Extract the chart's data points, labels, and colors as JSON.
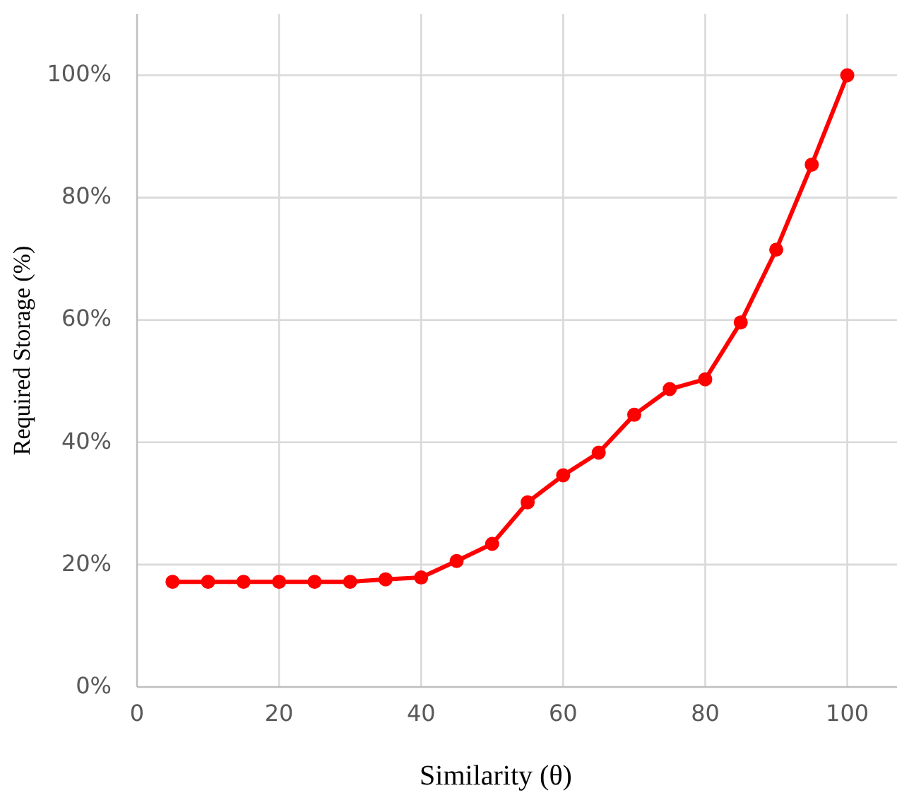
{
  "chart_data": {
    "type": "line",
    "xlabel": "Similarity (θ)",
    "ylabel": "Required Storage (%)",
    "x": [
      5,
      10,
      15,
      20,
      25,
      30,
      35,
      40,
      45,
      50,
      55,
      60,
      65,
      70,
      75,
      80,
      85,
      90,
      95,
      100
    ],
    "series": [
      {
        "color": "#ff0000",
        "values": [
          17.2,
          17.2,
          17.2,
          17.2,
          17.2,
          17.2,
          17.6,
          17.9,
          20.6,
          23.4,
          30.2,
          34.6,
          38.3,
          44.5,
          48.7,
          50.3,
          59.6,
          71.5,
          85.4,
          100
        ]
      }
    ],
    "xlim": [
      0,
      107
    ],
    "xticks": [
      0,
      20,
      40,
      60,
      80,
      100
    ],
    "ylim": [
      0,
      110
    ],
    "yticks": [
      {
        "value": 0,
        "label": "0%"
      },
      {
        "value": 20,
        "label": "20%"
      },
      {
        "value": 40,
        "label": "40%"
      },
      {
        "value": 60,
        "label": "60%"
      },
      {
        "value": 80,
        "label": "80%"
      },
      {
        "value": 100,
        "label": "100%"
      }
    ],
    "grid": true,
    "marker": "circle",
    "line_style": "solid"
  }
}
